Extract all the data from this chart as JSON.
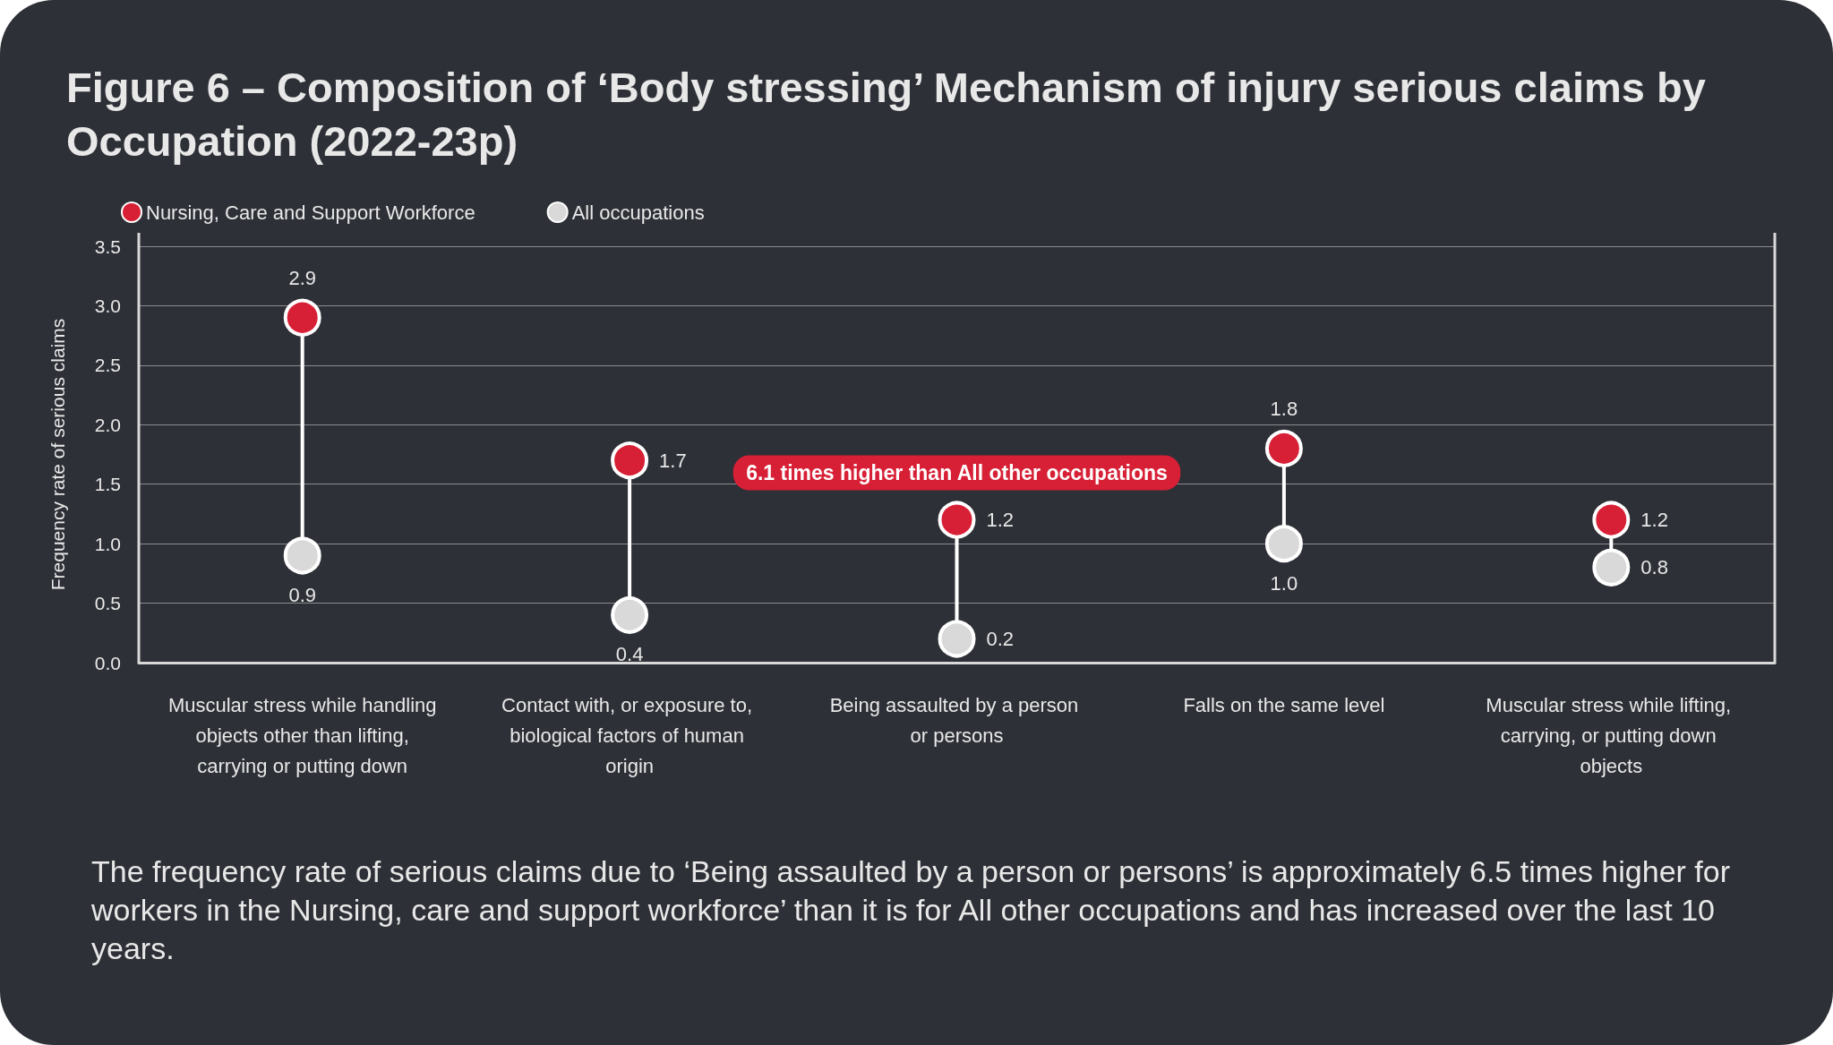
{
  "chart_data": {
    "type": "scatter",
    "title": "Figure 6 – Composition of ‘Body stressing’ Mechanism of injury serious claims by Occupation (2022-23p)",
    "ylabel": "Frequency rate of serious claims",
    "categories": [
      "Muscular stress while handling objects other than lifting, carrying or putting down",
      "Contact with, or exposure to, biological factors of human origin",
      "Being assaulted by a person or persons",
      "Falls on the same level",
      "Muscular stress while lifting, carrying, or putting down objects"
    ],
    "series": [
      {
        "name": "Nursing, Care and Support Workforce",
        "color": "#d71f35",
        "values": [
          2.9,
          1.7,
          1.2,
          1.8,
          1.2
        ],
        "value_labels": [
          "2.9",
          "1.7",
          "1.2",
          "1.8",
          "1.2"
        ]
      },
      {
        "name": "All occupations",
        "color": "#d9d9d9",
        "values": [
          0.9,
          0.4,
          0.2,
          1.0,
          0.8
        ],
        "value_labels": [
          "0.9",
          "0.4",
          "0.2",
          "1.0",
          "0.8"
        ]
      }
    ],
    "ylim": [
      0,
      3.5
    ],
    "yticks": [
      {
        "value": 0,
        "label": "0.0"
      },
      {
        "value": 0.5,
        "label": "0.5"
      },
      {
        "value": 1,
        "label": "1.0"
      },
      {
        "value": 1.5,
        "label": "1.5"
      },
      {
        "value": 2,
        "label": "2.0"
      },
      {
        "value": 2.5,
        "label": "2.5"
      },
      {
        "value": 3,
        "label": "3.0"
      },
      {
        "value": 3.5,
        "label": "3.5"
      }
    ],
    "grid": "y",
    "legend": "top left",
    "marker": "circle",
    "annotations": [
      "6.1 times higher than All other occupations",
      "The frequency rate of serious claims due to ‘Being assaulted by a person or persons’ is approximately 6.5 times higher for workers in the Nursing, care and support workforce’ than it is for All other occupations and has increased over the last 10 years."
    ]
  }
}
